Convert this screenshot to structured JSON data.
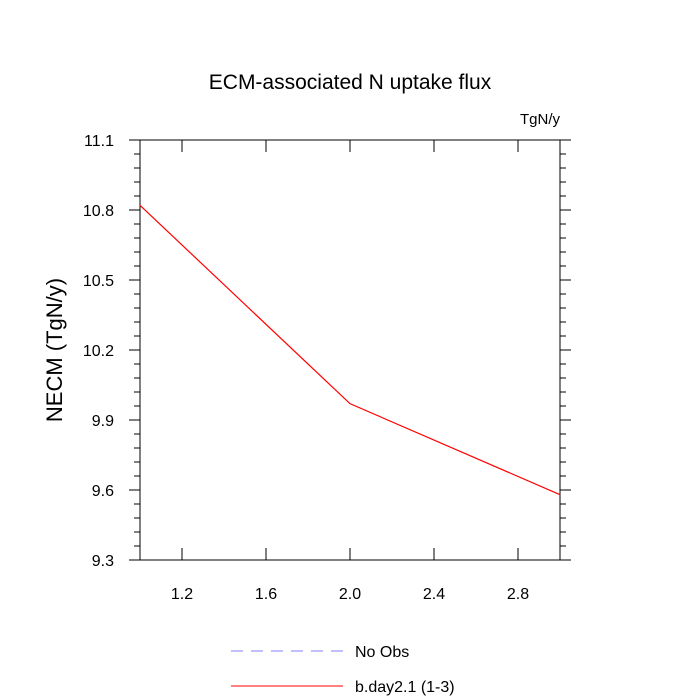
{
  "chart_data": {
    "type": "line",
    "title": "ECM-associated N uptake flux",
    "unit_label": "TgN/y",
    "ylabel": "NECM  (TgN/y)",
    "xlabel": "",
    "xlim": [
      1.0,
      3.0
    ],
    "ylim": [
      9.3,
      11.1
    ],
    "x_ticks": [
      1.2,
      1.6,
      2.0,
      2.4,
      2.8
    ],
    "x_tick_labels": [
      "1.2",
      "1.6",
      "2.0",
      "2.4",
      "2.8"
    ],
    "y_ticks": [
      9.3,
      9.6,
      9.9,
      10.2,
      10.5,
      10.8,
      11.1
    ],
    "y_tick_labels": [
      "9.3",
      "9.6",
      "9.9",
      "10.2",
      "10.5",
      "10.8",
      "11.1"
    ],
    "grid": false,
    "legend_position": "bottom-center",
    "series": [
      {
        "name": "b.day2.1 (1-3)",
        "color": "#ff0000",
        "style": "solid",
        "x": [
          1.0,
          2.0,
          3.0
        ],
        "y": [
          10.82,
          9.97,
          9.58
        ]
      }
    ],
    "legend": [
      {
        "label": "No Obs",
        "color": "#8080ff",
        "style": "dashed"
      },
      {
        "label": "b.day2.1 (1-3)",
        "color": "#ff0000",
        "style": "solid"
      }
    ]
  }
}
